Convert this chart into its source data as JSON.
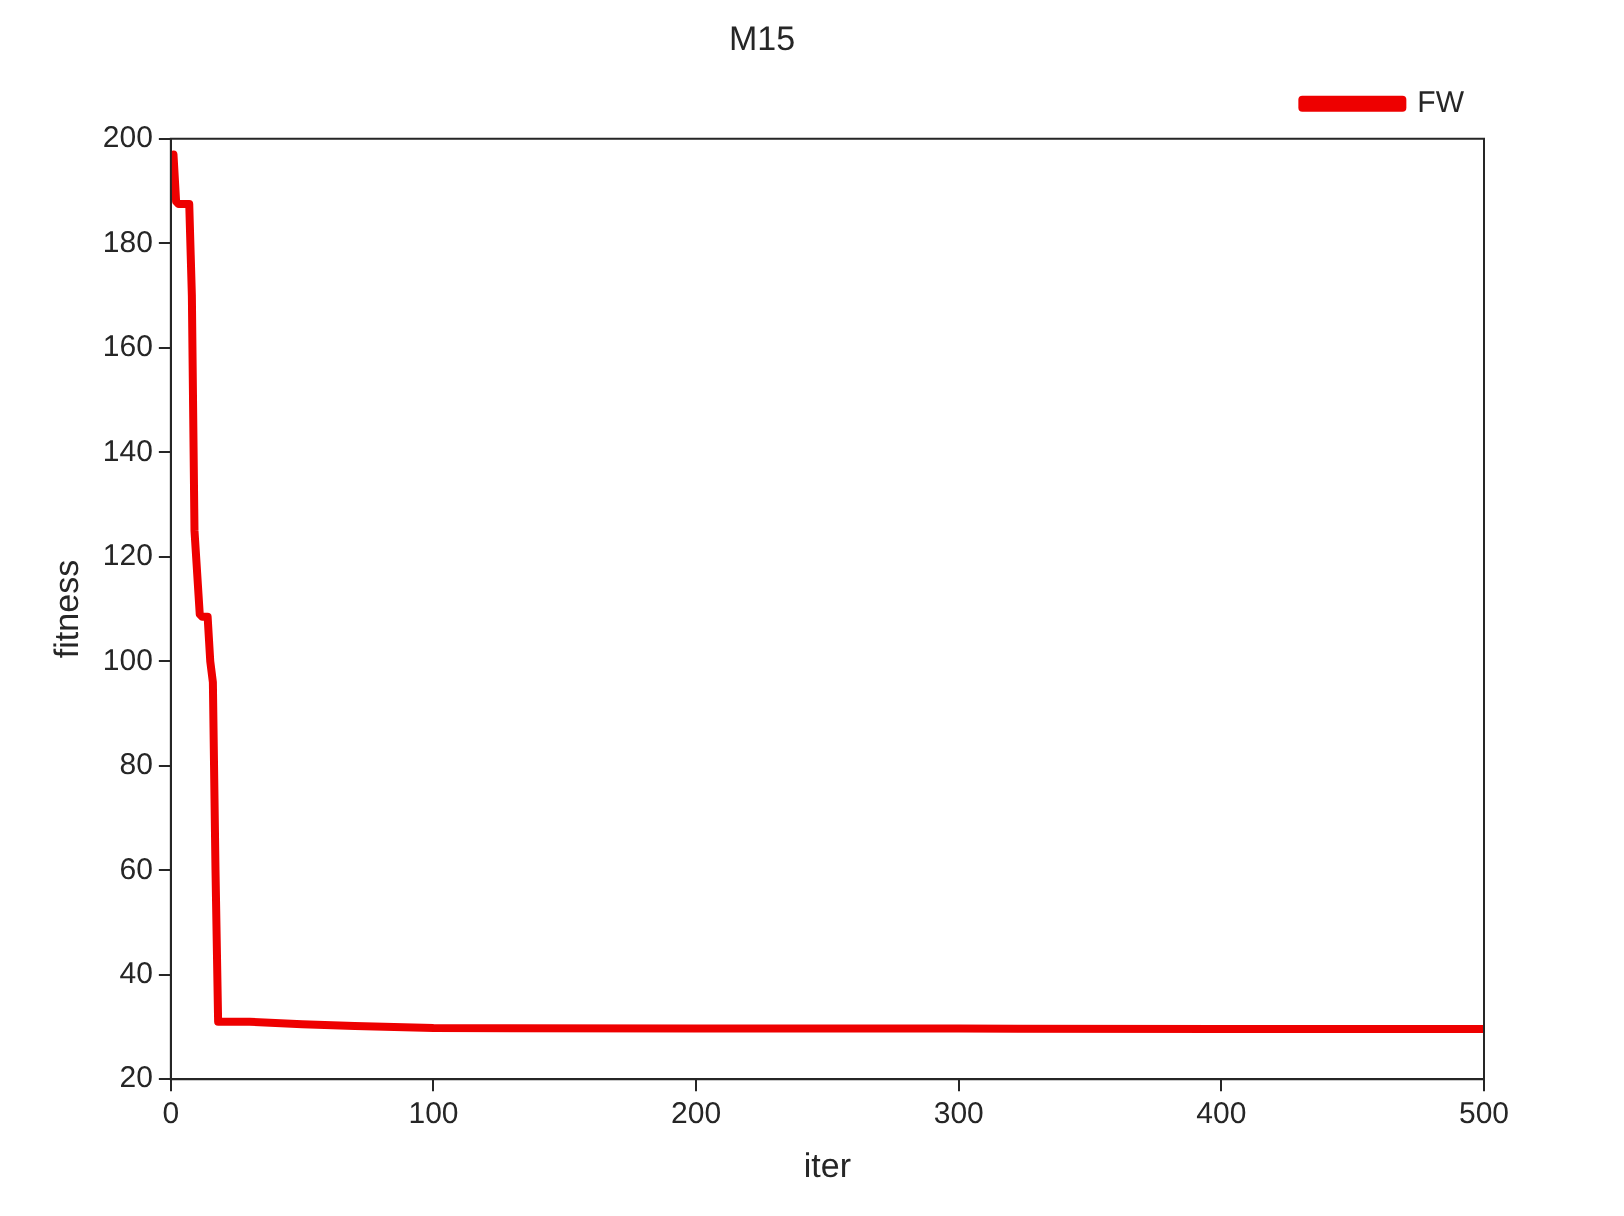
{
  "chart_data": {
    "type": "line",
    "title": "M15",
    "xlabel": "iter",
    "ylabel": "fitness",
    "xlim": [
      0,
      500
    ],
    "xticks": [
      0,
      100,
      200,
      300,
      400,
      500
    ],
    "ylim": [
      20,
      200
    ],
    "yticks": [
      20,
      40,
      60,
      80,
      100,
      120,
      140,
      160,
      180,
      200
    ],
    "grid": false,
    "legend": "top right",
    "marker": "none",
    "line_style": "solid",
    "series": [
      {
        "name": "FW",
        "color": "#ee0000",
        "x": [
          1,
          2,
          3,
          7,
          8,
          9,
          11,
          12,
          14,
          15,
          16,
          17,
          18,
          20,
          30,
          50,
          70,
          100,
          200,
          300,
          400,
          500
        ],
        "values": [
          197,
          188,
          187.5,
          187.5,
          170,
          125,
          109,
          108.5,
          108.5,
          100,
          96,
          60,
          31,
          31,
          31,
          30.5,
          30.2,
          29.8,
          29.7,
          29.7,
          29.6,
          29.6
        ]
      }
    ]
  }
}
